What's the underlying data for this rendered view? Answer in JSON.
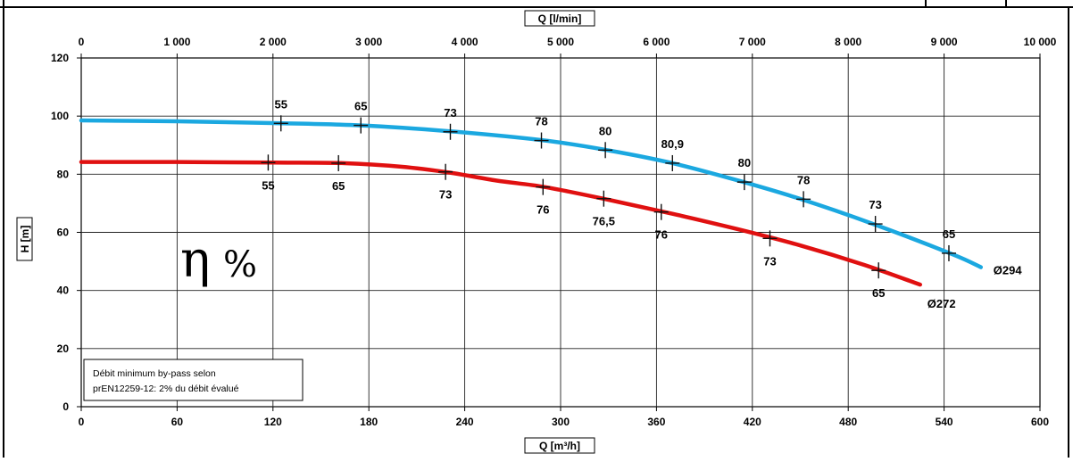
{
  "chart_data": {
    "type": "line",
    "x_bottom": {
      "label": "Q [m³/h]",
      "ticks": [
        "0",
        "60",
        "120",
        "180",
        "240",
        "300",
        "360",
        "420",
        "480",
        "540",
        "600"
      ],
      "range": [
        0,
        600
      ]
    },
    "x_top": {
      "label": "Q [l/min]",
      "ticks": [
        "0",
        "1 000",
        "2 000",
        "3 000",
        "4 000",
        "5 000",
        "6 000",
        "7 000",
        "8 000",
        "9 000",
        "10 000"
      ],
      "range": [
        0,
        10000
      ]
    },
    "y": {
      "label": "H [m]",
      "ticks": [
        "0",
        "20",
        "40",
        "60",
        "80",
        "100",
        "120"
      ],
      "range": [
        0,
        120
      ]
    },
    "grid": true,
    "efficiency_annotation": {
      "symbol": "η",
      "unit": "%"
    },
    "note": [
      "Débit minimum by-pass selon",
      "prEN12259-12: 2% du débit évalué"
    ],
    "series": [
      {
        "name": "Ø294",
        "color": "#1ba8e0",
        "x": [
          0,
          60,
          120,
          175,
          230,
          290,
          330,
          370,
          410,
          450,
          495,
          545,
          563
        ],
        "y": [
          98.5,
          98.2,
          97.6,
          96.8,
          94.8,
          91.6,
          88.2,
          83.8,
          78,
          71.5,
          63,
          52.5,
          48
        ],
        "efficiency_points": [
          {
            "x": 125,
            "y": 97.5,
            "label": "55"
          },
          {
            "x": 175,
            "y": 96.8,
            "label": "65"
          },
          {
            "x": 231,
            "y": 94.6,
            "label": "73"
          },
          {
            "x": 288,
            "y": 91.6,
            "label": "78"
          },
          {
            "x": 328,
            "y": 88.3,
            "label": "80"
          },
          {
            "x": 370,
            "y": 83.8,
            "label": "80,9"
          },
          {
            "x": 415,
            "y": 77.3,
            "label": "80"
          },
          {
            "x": 452,
            "y": 71.4,
            "label": "78"
          },
          {
            "x": 497,
            "y": 62.9,
            "label": "73"
          },
          {
            "x": 543,
            "y": 52.8,
            "label": "65"
          }
        ]
      },
      {
        "name": "Ø272",
        "color": "#e01010",
        "x": [
          0,
          60,
          120,
          165,
          200,
          230,
          260,
          290,
          330,
          370,
          410,
          450,
          490,
          525
        ],
        "y": [
          84.2,
          84.2,
          84.0,
          83.8,
          82.6,
          80.6,
          77.8,
          75.6,
          71.2,
          66.4,
          61.2,
          55.5,
          48.8,
          42
        ],
        "efficiency_points": [
          {
            "x": 117,
            "y": 84.0,
            "label": "55"
          },
          {
            "x": 161,
            "y": 83.8,
            "label": "65"
          },
          {
            "x": 228,
            "y": 80.8,
            "label": "73"
          },
          {
            "x": 289,
            "y": 75.6,
            "label": "76"
          },
          {
            "x": 327,
            "y": 71.6,
            "label": "76,5"
          },
          {
            "x": 363,
            "y": 67.0,
            "label": "76"
          },
          {
            "x": 431,
            "y": 57.9,
            "label": "73"
          },
          {
            "x": 499,
            "y": 46.9,
            "label": "65"
          }
        ]
      }
    ]
  }
}
